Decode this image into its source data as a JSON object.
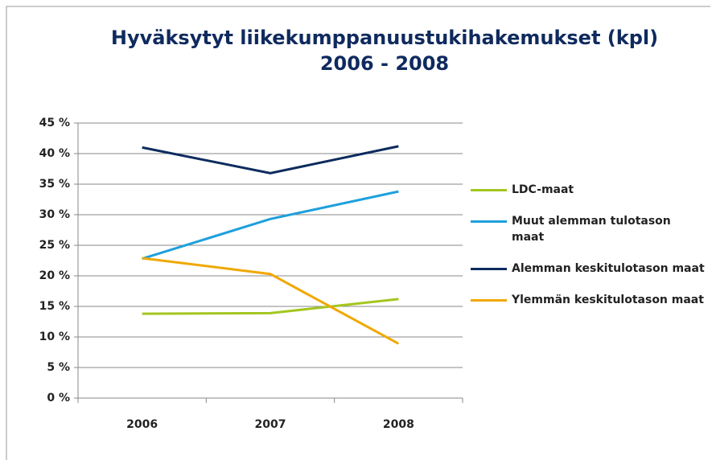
{
  "chart_data": {
    "type": "line",
    "title": [
      "Hyväksytyt liikekumppanuustukihakemukset (kpl)",
      "2006 - 2008"
    ],
    "categories": [
      "2006",
      "2007",
      "2008"
    ],
    "series": [
      {
        "name": "LDC-maat",
        "color": "#a3c61f",
        "values": [
          13.8,
          13.9,
          16.2
        ]
      },
      {
        "name": "Muut alemman tulotason maat",
        "color": "#1ea0dc",
        "values": [
          22.8,
          29.3,
          33.8
        ]
      },
      {
        "name": "Alemman keskitulotason maat",
        "color": "#0d2b5e",
        "values": [
          41.0,
          36.8,
          41.2
        ]
      },
      {
        "name": "Ylemmän keskitulotason maat",
        "color": "#f0a800",
        "values": [
          22.9,
          20.3,
          8.9
        ]
      }
    ],
    "ylim": [
      0,
      45
    ],
    "yticks": [
      {
        "value": 0,
        "label": "0 %"
      },
      {
        "value": 5,
        "label": "5 %"
      },
      {
        "value": 10,
        "label": "10 %"
      },
      {
        "value": 15,
        "label": "15 %"
      },
      {
        "value": 20,
        "label": "20 %"
      },
      {
        "value": 25,
        "label": "25 %"
      },
      {
        "value": 30,
        "label": "30 %"
      },
      {
        "value": 35,
        "label": "35 %"
      },
      {
        "value": 40,
        "label": "40 %"
      },
      {
        "value": 45,
        "label": "45 %"
      }
    ],
    "grid": true,
    "legend": "right"
  }
}
